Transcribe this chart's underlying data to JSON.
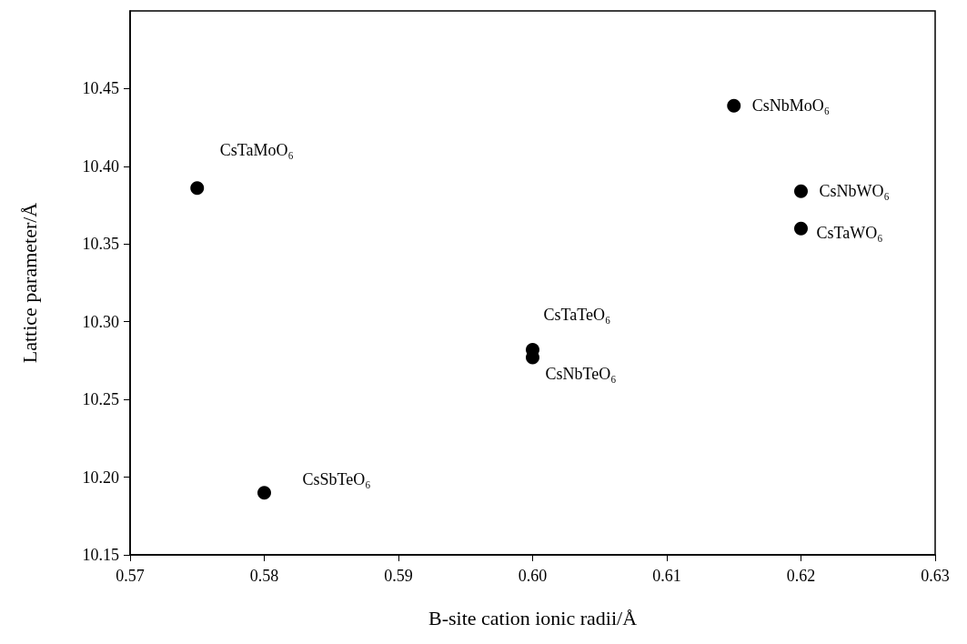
{
  "chart_data": {
    "type": "scatter",
    "xlabel": "B-site cation ionic radii/Å",
    "ylabel": "Lattice parameter/Å",
    "x": [
      0.575,
      0.58,
      0.6,
      0.6,
      0.615,
      0.62,
      0.62
    ],
    "series": [
      {
        "color": "#000000",
        "values": [
          10.386,
          10.19,
          10.282,
          10.277,
          10.439,
          10.384,
          10.36
        ]
      }
    ],
    "xlim": [
      0.57,
      0.63
    ],
    "xticks": [
      0.57,
      0.58,
      0.59,
      {
        "value": 0.6,
        "label": "0.60"
      },
      0.61,
      0.62,
      0.63
    ],
    "ylim": [
      10.15,
      10.5
    ],
    "yticks": [
      10.15,
      {
        "value": 10.2,
        "label": "10.20"
      },
      10.25,
      {
        "value": 10.3,
        "label": "10.30"
      },
      10.35,
      {
        "value": 10.4,
        "label": "10.40"
      },
      10.45
    ],
    "marker": "circle",
    "grid": false,
    "annotations": [
      {
        "text": "CsTaMoO₆",
        "x": 0.575,
        "y": 10.386
      },
      {
        "text": "CsSbTeO₆",
        "x": 0.58,
        "y": 10.19
      },
      {
        "text": "CsTaTeO₆",
        "x": 0.6,
        "y": 10.282
      },
      {
        "text": "CsNbTeO₆",
        "x": 0.6,
        "y": 10.277
      },
      {
        "text": "CsNbMoO₆",
        "x": 0.615,
        "y": 10.439
      },
      {
        "text": "CsNbWO₆",
        "x": 0.62,
        "y": 10.384
      },
      {
        "text": "CsTaWO₆",
        "x": 0.62,
        "y": 10.36
      }
    ]
  }
}
